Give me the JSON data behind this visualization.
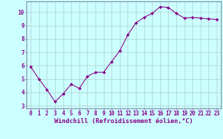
{
  "x": [
    0,
    1,
    2,
    3,
    4,
    5,
    6,
    7,
    8,
    9,
    10,
    11,
    12,
    13,
    14,
    15,
    16,
    17,
    18,
    19,
    20,
    21,
    22,
    23
  ],
  "y": [
    5.9,
    5.0,
    4.2,
    3.3,
    3.9,
    4.6,
    4.3,
    5.2,
    5.5,
    5.5,
    6.3,
    7.1,
    8.3,
    9.2,
    9.6,
    9.9,
    10.4,
    10.35,
    9.9,
    9.55,
    9.6,
    9.55,
    9.5,
    9.45
  ],
  "line_color": "#880088",
  "marker": "D",
  "markersize": 2.0,
  "linewidth": 0.8,
  "xlabel": "Windchill (Refroidissement éolien,°C)",
  "xlabel_fontsize": 6.5,
  "xlim": [
    -0.5,
    23.5
  ],
  "ylim": [
    2.8,
    10.8
  ],
  "yticks": [
    3,
    4,
    5,
    6,
    7,
    8,
    9,
    10
  ],
  "xticks": [
    0,
    1,
    2,
    3,
    4,
    5,
    6,
    7,
    8,
    9,
    10,
    11,
    12,
    13,
    14,
    15,
    16,
    17,
    18,
    19,
    20,
    21,
    22,
    23
  ],
  "background_color": "#ccffff",
  "grid_color": "#aacccc",
  "tick_color": "#880088",
  "tick_fontsize": 5.5,
  "spine_color": "#666688"
}
